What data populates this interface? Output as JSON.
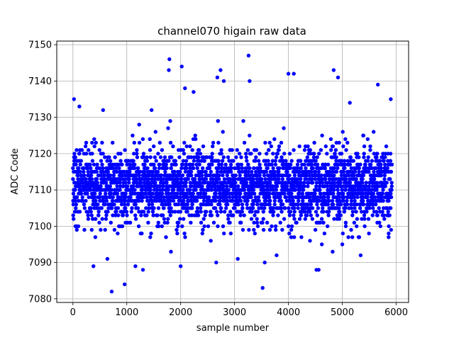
{
  "chart_data": {
    "type": "scatter",
    "title": "channel070 higain raw data",
    "xlabel": "sample number",
    "ylabel": "ADC Code",
    "xlim": [
      -300,
      6230
    ],
    "ylim": [
      7079,
      7151
    ],
    "x_ticks": [
      0,
      1000,
      2000,
      3000,
      4000,
      5000,
      6000
    ],
    "x_tick_labels": [
      "0",
      "1000",
      "2000",
      "3000",
      "4000",
      "5000",
      "6000"
    ],
    "y_ticks": [
      7080,
      7090,
      7100,
      7110,
      7120,
      7130,
      7140,
      7150
    ],
    "y_tick_labels": [
      "7080",
      "7090",
      "7100",
      "7110",
      "7120",
      "7130",
      "7140",
      "7150"
    ],
    "grid": true,
    "marker_color": "#0000ff",
    "x_range": [
      0,
      5920
    ],
    "baseline": 7111,
    "typical_spread": [
      7100,
      7128
    ],
    "series": [
      {
        "points": [
          [
            20,
            7135
          ],
          [
            60,
            7100
          ],
          [
            120,
            7133
          ],
          [
            380,
            7089
          ],
          [
            560,
            7132
          ],
          [
            640,
            7091
          ],
          [
            720,
            7082
          ],
          [
            960,
            7084
          ],
          [
            1160,
            7089
          ],
          [
            1300,
            7088
          ],
          [
            1460,
            7132
          ],
          [
            1780,
            7143
          ],
          [
            1790,
            7146
          ],
          [
            1820,
            7093
          ],
          [
            2000,
            7089
          ],
          [
            2020,
            7144
          ],
          [
            2080,
            7138
          ],
          [
            2240,
            7137
          ],
          [
            2560,
            7096
          ],
          [
            2660,
            7090
          ],
          [
            2680,
            7141
          ],
          [
            2740,
            7143
          ],
          [
            2800,
            7140
          ],
          [
            3060,
            7091
          ],
          [
            3260,
            7147
          ],
          [
            3280,
            7140
          ],
          [
            3520,
            7083
          ],
          [
            3560,
            7090
          ],
          [
            3780,
            7092
          ],
          [
            4000,
            7142
          ],
          [
            4100,
            7142
          ],
          [
            4400,
            7096
          ],
          [
            4520,
            7088
          ],
          [
            4560,
            7088
          ],
          [
            4620,
            7095
          ],
          [
            4820,
            7093
          ],
          [
            4840,
            7143
          ],
          [
            4920,
            7141
          ],
          [
            5000,
            7095
          ],
          [
            5140,
            7134
          ],
          [
            5340,
            7092
          ],
          [
            5660,
            7139
          ],
          [
            5860,
            7098
          ],
          [
            5900,
            7135
          ]
        ]
      }
    ]
  }
}
